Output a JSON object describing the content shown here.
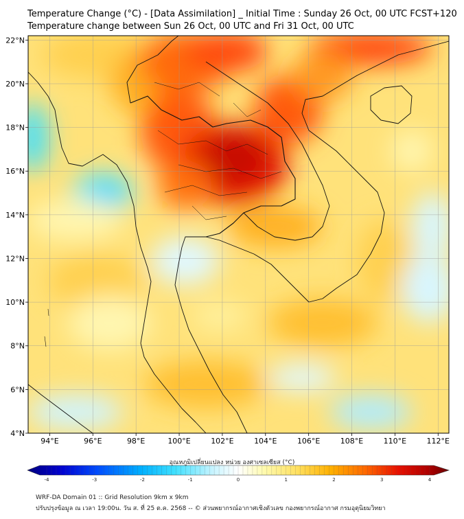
{
  "title_line1": "Temperature Change (°C) - [Data Assimilation] _ Initial Time : Sunday 26 Oct, 00 UTC FCST+120",
  "title_line2": "Temperature change between Sun 26 Oct, 00 UTC and Fri 31 Oct, 00 UTC",
  "map": {
    "lon_range": [
      93,
      112.5
    ],
    "lat_range": [
      4,
      22.2
    ],
    "lon_ticks": [
      {
        "value": 94,
        "label": "94°E"
      },
      {
        "value": 96,
        "label": "96°E"
      },
      {
        "value": 98,
        "label": "98°E"
      },
      {
        "value": 100,
        "label": "100°E"
      },
      {
        "value": 102,
        "label": "102°E"
      },
      {
        "value": 104,
        "label": "104°E"
      },
      {
        "value": 106,
        "label": "106°E"
      },
      {
        "value": 108,
        "label": "108°E"
      },
      {
        "value": 110,
        "label": "110°E"
      },
      {
        "value": 112,
        "label": "112°E"
      }
    ],
    "lat_ticks": [
      {
        "value": 22,
        "label": "22°N"
      },
      {
        "value": 20,
        "label": "20°N"
      },
      {
        "value": 18,
        "label": "18°N"
      },
      {
        "value": 16,
        "label": "16°N"
      },
      {
        "value": 14,
        "label": "14°N"
      },
      {
        "value": 12,
        "label": "12°N"
      },
      {
        "value": 10,
        "label": "10°N"
      },
      {
        "value": 8,
        "label": "8°N"
      },
      {
        "value": 6,
        "label": "6°N"
      },
      {
        "value": 4,
        "label": "4°N"
      }
    ],
    "gridlines": true,
    "background_color": "#ffe27a"
  },
  "colorbar": {
    "label": "อุณหภูมิเปลี่ยนแปลง หน่วย องศาเซลเซียส (°C)",
    "range": [
      -4,
      4
    ],
    "tick_labels": [
      "-4",
      "-3",
      "-2",
      "-1",
      "0",
      "1",
      "2",
      "3",
      "4"
    ],
    "colors": [
      "#00007f",
      "#0000d0",
      "#0050ff",
      "#00b0ff",
      "#40e0ff",
      "#c8f4ff",
      "#ffffff",
      "#fffbb0",
      "#ffe060",
      "#ffb000",
      "#ff6a00",
      "#e81000",
      "#b00000",
      "#6a0000"
    ]
  },
  "footer_line1": "WRF-DA Domain 01 :: Grid Resolution 9km x 9km",
  "footer_line2": "ปรับปรุงข้อมูล ณ เวลา 19:00น. วัน ส. ที่ 25 ต.ค. 2568 -- © ส่วนพยากรณ์อากาศเชิงตัวเลข กองพยากรณ์อากาศ กรมอุตุนิยมวิทยา"
}
